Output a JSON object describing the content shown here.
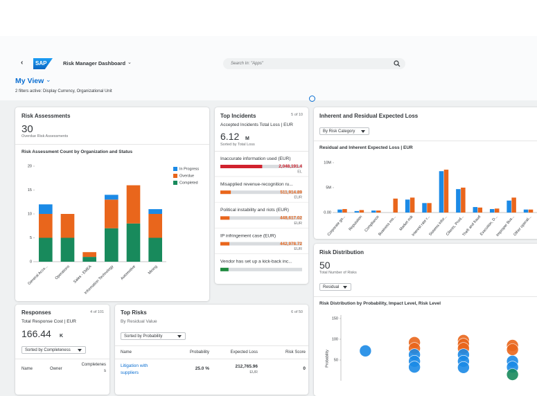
{
  "shell": {
    "logo": "SAP",
    "app_title": "Risk Manager Dashboard",
    "search_placeholder": "Search In: \"Apps\""
  },
  "header": {
    "title": "My View",
    "filters": "2 filters active: Display Currency, Organizational Unit"
  },
  "risk_assessments": {
    "title": "Risk Assessments",
    "kpi": "30",
    "kpi_label": "Overdue Risk Assessments"
  },
  "top_incidents": {
    "title": "Top Incidents",
    "count": "5 of 10",
    "subtitle": "Accepted Incidents Total Loss | EUR",
    "kpi": "6.12",
    "kpi_unit": "M",
    "kpi_label": "Sorted by Total Loss"
  },
  "expected_loss": {
    "title": "Inherent and Residual Expected Loss",
    "dropdown": "By Risk Category"
  },
  "risk_distribution": {
    "title": "Risk Distribution",
    "kpi": "50",
    "kpi_label": "Total Number of Risks",
    "dropdown": "Residual"
  },
  "responses": {
    "title": "Responses",
    "count": "4 of 101",
    "subtitle": "Total Response Cost | EUR",
    "kpi": "166.44",
    "kpi_unit": "K",
    "dropdown": "Sorted by Completeness",
    "columns": [
      "Name",
      "Owner",
      "Completeness"
    ]
  },
  "top_risks": {
    "title": "Top Risks",
    "count": "6 of 50",
    "subtitle": "By Residual Value",
    "dropdown": "Sorted by Probability",
    "columns": [
      "Name",
      "Probability",
      "Expected Loss",
      "Risk Score"
    ],
    "rows": [
      {
        "name": "Litigation with suppliers",
        "probability": "25.0 %",
        "expected_loss": "212,765.96",
        "currency": "EUR",
        "risk_score": "0"
      }
    ]
  },
  "chart_data": [
    {
      "type": "stacked_bar",
      "title": "Risk Assessment Count by Organization and Status",
      "categories": [
        "General Acco...",
        "Operations",
        "Sales - EMEA",
        "Information Technology",
        "Automotive",
        "Mining"
      ],
      "series": [
        {
          "name": "In Progress",
          "color": "#1b8ae6",
          "values": [
            2,
            0,
            0,
            1,
            0,
            1
          ]
        },
        {
          "name": "Overdue",
          "color": "#e9661c",
          "values": [
            5,
            5,
            1,
            6,
            8,
            5
          ]
        },
        {
          "name": "Completed",
          "color": "#188a5c",
          "values": [
            5,
            5,
            1,
            7,
            8,
            5
          ]
        }
      ],
      "ylim": [
        0,
        20
      ],
      "yticks": [
        0,
        5,
        10,
        15,
        20
      ],
      "legend": "right"
    },
    {
      "type": "grouped_bar",
      "title": "Residual and Inherent Expected Loss | EUR",
      "categories": [
        "Corporate go...",
        "Reputation",
        "Compliance",
        "Business mo...",
        "Market risk",
        "Interest rate r...",
        "Sistema infor...",
        "Clients, Prod...",
        "Theft and fraud",
        "Execution, D...",
        "Improper Bus...",
        "Other operati..."
      ],
      "series": [
        {
          "color": "#1b8ae6",
          "values": [
            600000,
            300000,
            400000,
            0,
            2600000,
            1900000,
            8300000,
            4700000,
            1100000,
            700000,
            2400000,
            600000
          ]
        },
        {
          "color": "#e9661c",
          "values": [
            700000,
            500000,
            400000,
            2800000,
            3000000,
            1900000,
            8600000,
            5000000,
            1000000,
            800000,
            3000000,
            600000
          ]
        }
      ],
      "ylim": [
        0,
        10000000
      ],
      "yticks": [
        {
          "value": 0,
          "label": "0.00"
        },
        {
          "value": 5000000,
          "label": "5M"
        },
        {
          "value": 10000000,
          "label": "10M"
        }
      ]
    },
    {
      "type": "scatter",
      "title": "Risk Distribution by Probability, Impact Level, Risk Level",
      "y_label": "Probability",
      "xlim": [
        0.5,
        4.5
      ],
      "ylim": [
        0,
        150
      ],
      "yticks": [
        50,
        100,
        150
      ],
      "series": [
        {
          "color": "#e9661c",
          "x": [
            2,
            2,
            3,
            3,
            3,
            4,
            4
          ],
          "values": [
            92,
            78,
            97,
            88,
            78,
            85,
            75
          ]
        },
        {
          "color": "#1b8ae6",
          "x": [
            1,
            2,
            2,
            2,
            3,
            3,
            3,
            4,
            4
          ],
          "values": [
            72,
            63,
            47,
            33,
            63,
            47,
            32,
            47,
            33
          ]
        },
        {
          "color": "#188a5c",
          "x": [
            4
          ],
          "values": [
            15
          ]
        }
      ]
    },
    {
      "type": "hbar",
      "categories": [
        "Inaccurate information used (EUR)",
        "Misapplied revenue-recognition ru...",
        "Political instability and riots (EUR)",
        "IP infringement case (EUR)",
        "Vendor has set up a kick-back inc..."
      ],
      "values": [
        2048191.4,
        511914.89,
        448617.02,
        442978.72,
        400000
      ],
      "value_labels": [
        "2,048,191.4",
        "511,914.89",
        "448,617.02",
        "442,978.72",
        null
      ],
      "units": [
        "EL",
        "EUR",
        "EUR",
        "EUR",
        null
      ],
      "colors": [
        "#d1222e",
        "#e9661c",
        "#e9661c",
        "#e9661c",
        "#1e8a3e"
      ],
      "xlim": [
        0,
        4000000
      ]
    }
  ]
}
